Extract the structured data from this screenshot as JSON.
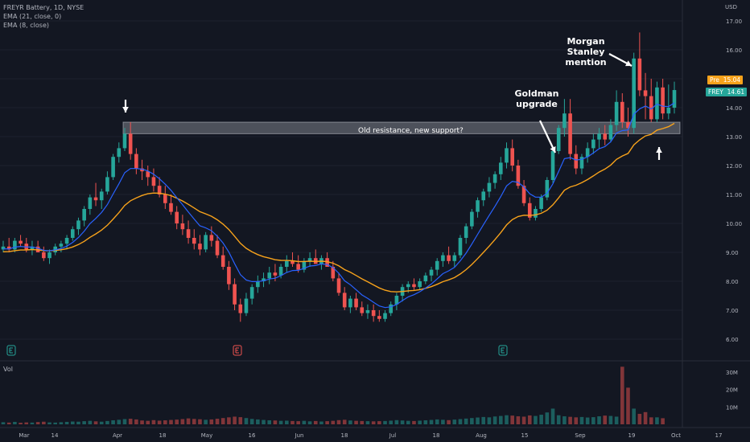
{
  "legend": {
    "symbol_line": "FREYR Battery, 1D, NYSE",
    "ema21_line": "EMA (21, close, 0)",
    "ema8_line": "EMA (8, close)"
  },
  "axis": {
    "unit": "USD",
    "price_ticks": [
      "17.00",
      "16.00",
      "15.00",
      "14.00",
      "13.00",
      "12.00",
      "11.00",
      "10.00",
      "9.00",
      "8.00",
      "7.00",
      "6.00"
    ],
    "volume_ticks": [
      "30M",
      "20M",
      "10M"
    ],
    "x_ticks": [
      "Mar",
      "14",
      "Apr",
      "18",
      "May",
      "16",
      "Jun",
      "18",
      "Jul",
      "18",
      "Aug",
      "15",
      "Sep",
      "19",
      "Oct",
      "17"
    ]
  },
  "volume_label": "Vol",
  "annotations": {
    "resistance": "Old resistance, new support?",
    "goldman_line1": "Goldman",
    "goldman_line2": "upgrade",
    "morgan_line1": "Morgan",
    "morgan_line2": "Stanley",
    "morgan_line3": "mention"
  },
  "tags": {
    "pre_label": "Pre",
    "pre_value": "15.04",
    "ticker": "FREY",
    "last_value": "14.61"
  },
  "colors": {
    "up": "#26a69a",
    "down": "#ef5350",
    "ema21": "#f7a21b",
    "ema8": "#2962ff",
    "background": "#131722",
    "resistance_band": "#9598a1"
  },
  "chart_data": {
    "type": "candlestick",
    "ticker": "FREY",
    "ylim": [
      5.5,
      17.5
    ],
    "support_band": [
      13.1,
      13.5
    ],
    "candles": [
      [
        9.1,
        9.4,
        9.0,
        9.2
      ],
      [
        9.2,
        9.5,
        9.0,
        9.1
      ],
      [
        9.1,
        9.5,
        9.0,
        9.4
      ],
      [
        9.4,
        9.6,
        9.2,
        9.3
      ],
      [
        9.3,
        9.5,
        9.0,
        9.1
      ],
      [
        9.1,
        9.4,
        8.9,
        9.2
      ],
      [
        9.2,
        9.4,
        9.0,
        9.0
      ],
      [
        9.0,
        9.2,
        8.7,
        8.8
      ],
      [
        8.8,
        9.1,
        8.6,
        9.0
      ],
      [
        9.0,
        9.3,
        8.9,
        9.2
      ],
      [
        9.2,
        9.4,
        9.0,
        9.3
      ],
      [
        9.3,
        9.6,
        9.1,
        9.5
      ],
      [
        9.5,
        9.9,
        9.4,
        9.8
      ],
      [
        9.8,
        10.2,
        9.6,
        10.1
      ],
      [
        10.1,
        10.6,
        9.9,
        10.5
      ],
      [
        10.5,
        11.0,
        10.3,
        10.9
      ],
      [
        10.9,
        11.4,
        10.6,
        10.8
      ],
      [
        10.8,
        11.2,
        10.5,
        11.1
      ],
      [
        11.1,
        11.8,
        11.0,
        11.6
      ],
      [
        11.6,
        12.4,
        11.5,
        12.3
      ],
      [
        12.3,
        12.8,
        12.1,
        12.6
      ],
      [
        12.6,
        13.3,
        12.5,
        13.1
      ],
      [
        13.1,
        13.5,
        12.2,
        12.4
      ],
      [
        12.4,
        12.6,
        11.7,
        11.9
      ],
      [
        11.9,
        12.2,
        11.5,
        11.8
      ],
      [
        11.8,
        12.0,
        11.3,
        11.6
      ],
      [
        11.6,
        11.9,
        11.1,
        11.3
      ],
      [
        11.3,
        11.6,
        10.9,
        11.0
      ],
      [
        11.0,
        11.3,
        10.5,
        10.7
      ],
      [
        10.7,
        11.0,
        10.3,
        10.4
      ],
      [
        10.4,
        10.6,
        9.8,
        10.0
      ],
      [
        10.0,
        10.3,
        9.6,
        9.8
      ],
      [
        9.8,
        10.1,
        9.3,
        9.5
      ],
      [
        9.5,
        9.8,
        9.1,
        9.3
      ],
      [
        9.3,
        9.6,
        8.9,
        9.1
      ],
      [
        9.1,
        9.7,
        9.0,
        9.6
      ],
      [
        9.6,
        9.9,
        9.2,
        9.4
      ],
      [
        9.4,
        9.6,
        8.8,
        8.9
      ],
      [
        8.9,
        9.2,
        8.4,
        8.5
      ],
      [
        8.5,
        8.7,
        7.7,
        7.9
      ],
      [
        7.9,
        8.1,
        7.0,
        7.2
      ],
      [
        7.2,
        7.4,
        6.6,
        6.9
      ],
      [
        6.9,
        7.6,
        6.8,
        7.4
      ],
      [
        7.4,
        7.9,
        7.2,
        7.8
      ],
      [
        7.8,
        8.2,
        7.6,
        8.0
      ],
      [
        8.0,
        8.3,
        7.8,
        8.1
      ],
      [
        8.1,
        8.5,
        7.9,
        8.3
      ],
      [
        8.3,
        8.6,
        8.0,
        8.2
      ],
      [
        8.2,
        8.6,
        8.1,
        8.5
      ],
      [
        8.5,
        8.9,
        8.3,
        8.7
      ],
      [
        8.7,
        9.0,
        8.5,
        8.6
      ],
      [
        8.6,
        8.9,
        8.3,
        8.4
      ],
      [
        8.4,
        8.8,
        8.3,
        8.7
      ],
      [
        8.7,
        9.0,
        8.5,
        8.8
      ],
      [
        8.8,
        9.1,
        8.6,
        8.6
      ],
      [
        8.6,
        8.9,
        8.4,
        8.8
      ],
      [
        8.8,
        9.0,
        8.5,
        8.5
      ],
      [
        8.5,
        8.7,
        8.0,
        8.1
      ],
      [
        8.1,
        8.3,
        7.5,
        7.6
      ],
      [
        7.6,
        7.8,
        7.0,
        7.1
      ],
      [
        7.1,
        7.5,
        6.9,
        7.4
      ],
      [
        7.4,
        7.6,
        7.0,
        7.1
      ],
      [
        7.1,
        7.3,
        6.8,
        6.9
      ],
      [
        6.9,
        7.2,
        6.7,
        7.0
      ],
      [
        7.0,
        7.2,
        6.6,
        6.8
      ],
      [
        6.8,
        7.0,
        6.6,
        6.7
      ],
      [
        6.7,
        7.0,
        6.6,
        6.9
      ],
      [
        6.9,
        7.3,
        6.8,
        7.2
      ],
      [
        7.2,
        7.6,
        7.0,
        7.5
      ],
      [
        7.5,
        7.9,
        7.3,
        7.8
      ],
      [
        7.8,
        8.0,
        7.6,
        7.9
      ],
      [
        7.9,
        8.1,
        7.7,
        7.8
      ],
      [
        7.8,
        8.1,
        7.7,
        8.0
      ],
      [
        8.0,
        8.3,
        7.9,
        8.2
      ],
      [
        8.2,
        8.5,
        8.0,
        8.4
      ],
      [
        8.4,
        8.8,
        8.2,
        8.7
      ],
      [
        8.7,
        9.0,
        8.5,
        8.9
      ],
      [
        8.9,
        9.2,
        8.6,
        8.7
      ],
      [
        8.7,
        9.0,
        8.5,
        8.9
      ],
      [
        8.9,
        9.6,
        8.8,
        9.5
      ],
      [
        9.5,
        10.0,
        9.3,
        9.9
      ],
      [
        9.9,
        10.5,
        9.8,
        10.4
      ],
      [
        10.4,
        10.9,
        10.2,
        10.8
      ],
      [
        10.8,
        11.2,
        10.6,
        11.1
      ],
      [
        11.1,
        11.6,
        10.9,
        11.4
      ],
      [
        11.4,
        11.8,
        11.2,
        11.7
      ],
      [
        11.7,
        12.3,
        11.5,
        12.1
      ],
      [
        12.1,
        12.8,
        11.9,
        12.6
      ],
      [
        12.6,
        12.9,
        11.8,
        12.0
      ],
      [
        12.0,
        12.2,
        11.2,
        11.3
      ],
      [
        11.3,
        11.5,
        10.6,
        10.7
      ],
      [
        10.7,
        10.9,
        10.1,
        10.2
      ],
      [
        10.2,
        10.6,
        10.1,
        10.5
      ],
      [
        10.5,
        11.0,
        10.4,
        10.9
      ],
      [
        10.9,
        11.6,
        10.8,
        11.5
      ],
      [
        11.5,
        12.6,
        11.4,
        12.5
      ],
      [
        12.5,
        13.4,
        12.4,
        13.3
      ],
      [
        13.3,
        14.3,
        13.0,
        13.8
      ],
      [
        13.8,
        14.3,
        12.2,
        12.4
      ],
      [
        12.4,
        12.7,
        11.7,
        11.9
      ],
      [
        11.9,
        12.4,
        11.7,
        12.3
      ],
      [
        12.3,
        12.8,
        12.1,
        12.6
      ],
      [
        12.6,
        13.1,
        12.4,
        12.9
      ],
      [
        12.9,
        13.3,
        12.6,
        13.1
      ],
      [
        13.1,
        13.4,
        12.7,
        12.9
      ],
      [
        12.9,
        13.6,
        12.8,
        13.4
      ],
      [
        13.4,
        14.6,
        13.2,
        14.2
      ],
      [
        14.2,
        14.5,
        13.3,
        13.5
      ],
      [
        13.5,
        14.0,
        13.0,
        13.3
      ],
      [
        13.3,
        15.9,
        13.1,
        15.7
      ],
      [
        15.7,
        16.6,
        14.4,
        14.6
      ],
      [
        14.6,
        15.2,
        13.6,
        14.4
      ],
      [
        14.4,
        15.0,
        13.5,
        13.6
      ],
      [
        13.6,
        14.9,
        13.5,
        14.7
      ],
      [
        14.7,
        15.0,
        13.6,
        13.8
      ],
      [
        13.8,
        14.8,
        13.6,
        14.0
      ],
      [
        14.0,
        14.9,
        13.8,
        14.61
      ]
    ],
    "volume_m": [
      1.2,
      1.0,
      1.4,
      0.9,
      1.1,
      1.0,
      1.3,
      1.5,
      1.1,
      1.0,
      1.2,
      1.4,
      1.6,
      1.5,
      1.8,
      2.0,
      1.7,
      1.5,
      1.9,
      2.3,
      2.6,
      3.0,
      3.2,
      2.8,
      2.2,
      2.0,
      2.4,
      2.1,
      2.3,
      2.5,
      2.7,
      3.0,
      3.4,
      3.1,
      2.9,
      2.6,
      2.8,
      3.2,
      3.6,
      4.0,
      4.4,
      4.1,
      3.6,
      3.1,
      2.8,
      2.5,
      2.3,
      2.2,
      2.0,
      2.1,
      1.9,
      1.8,
      2.0,
      1.7,
      1.9,
      1.6,
      1.8,
      2.0,
      2.4,
      2.6,
      2.2,
      2.0,
      1.9,
      1.8,
      1.7,
      1.8,
      1.9,
      2.1,
      2.4,
      2.2,
      2.0,
      1.9,
      2.1,
      2.3,
      2.5,
      2.8,
      2.6,
      2.4,
      2.7,
      3.0,
      3.3,
      3.6,
      3.9,
      4.2,
      4.0,
      4.5,
      4.8,
      5.2,
      5.0,
      4.6,
      4.4,
      5.1,
      4.8,
      5.5,
      6.8,
      9.0,
      5.2,
      4.6,
      4.3,
      4.0,
      4.2,
      3.9,
      4.1,
      4.6,
      5.0,
      4.8,
      4.4,
      33.0,
      21.0,
      9.0,
      6.0,
      7.0,
      4.0,
      4.0,
      3.5
    ]
  }
}
